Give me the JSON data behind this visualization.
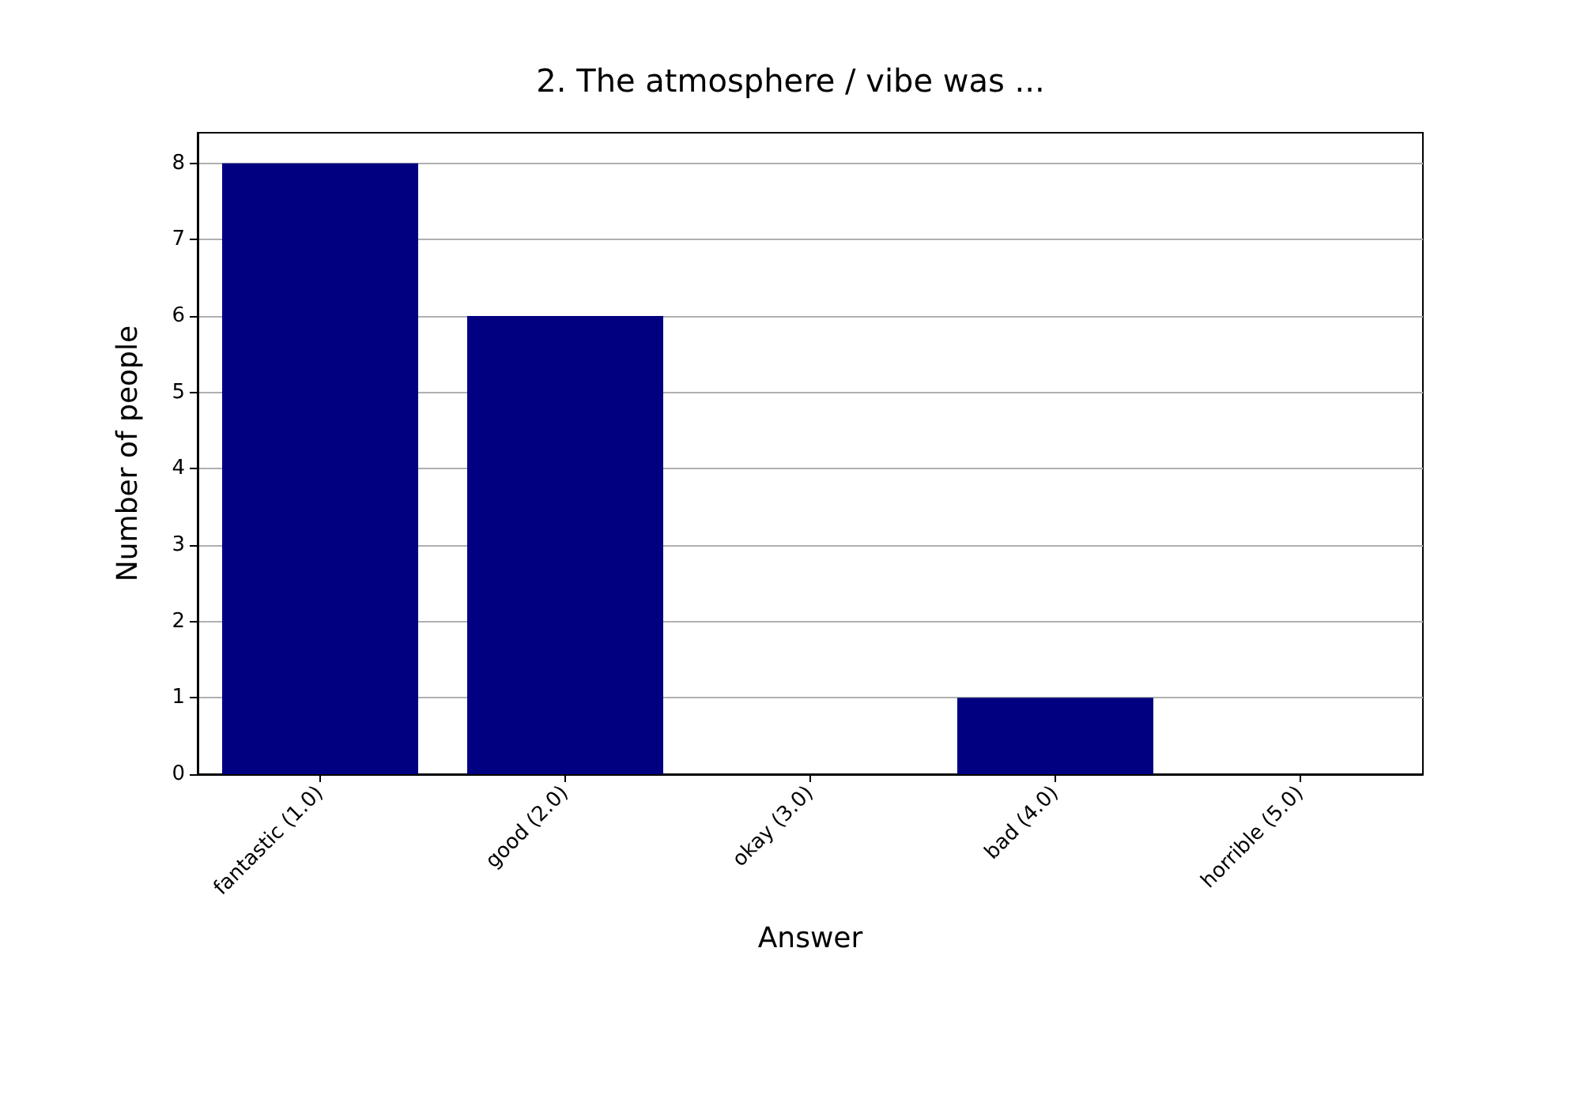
{
  "chart_data": {
    "type": "bar",
    "title": "2. The atmosphere / vibe was ...",
    "xlabel": "Answer",
    "ylabel": "Number of people",
    "categories": [
      "fantastic (1.0)",
      "good (2.0)",
      "okay (3.0)",
      "bad (4.0)",
      "horrible (5.0)"
    ],
    "values": [
      8,
      6,
      0,
      1,
      0
    ],
    "color": "#000080",
    "ylim": [
      0,
      8.4
    ],
    "yticks": [
      0,
      1,
      2,
      3,
      4,
      5,
      6,
      7,
      8
    ],
    "grid": "y"
  }
}
